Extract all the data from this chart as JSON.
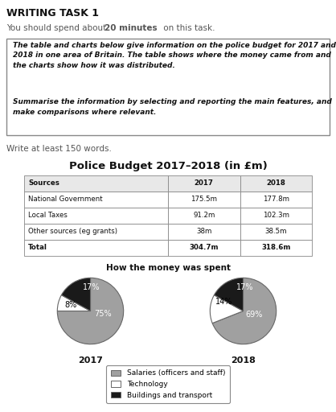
{
  "title_main": "WRITING TASK 1",
  "subtitle_prefix": "You should spend about ",
  "subtitle_bold": "20 minutes",
  "subtitle_suffix": " on this task.",
  "box_text1": "The table and charts below give information on the police budget for 2017 and\n2018 in one area of Britain. The table shows where the money came from and\nthe charts show how it was distributed.",
  "box_text2": "Summarise the information by selecting and reporting the main features, and\nmake comparisons where relevant.",
  "write_text": "Write at least 150 words.",
  "chart_title": "Police Budget 2017–2018 (in £m)",
  "table_headers": [
    "Sources",
    "2017",
    "2018"
  ],
  "table_rows": [
    [
      "National Government",
      "175.5m",
      "177.8m"
    ],
    [
      "Local Taxes",
      "91.2m",
      "102.3m"
    ],
    [
      "Other sources (eg grants)",
      "38m",
      "38.5m"
    ],
    [
      "Total",
      "304.7m",
      "318.6m"
    ]
  ],
  "pie_title": "How the money was spent",
  "pie_2017": [
    75,
    8,
    17
  ],
  "pie_2018": [
    69,
    14,
    17
  ],
  "pie_colors": [
    "#a0a0a0",
    "#ffffff",
    "#1a1a1a"
  ],
  "pie_labels_2017": [
    "75%",
    "8%",
    "17%"
  ],
  "pie_labels_2018": [
    "69%",
    "14%",
    "17%"
  ],
  "pie_year_2017": "2017",
  "pie_year_2018": "2018",
  "legend_labels": [
    "Salaries (officers and staff)",
    "Technology",
    "Buildings and transport"
  ],
  "legend_colors": [
    "#a0a0a0",
    "#ffffff",
    "#1a1a1a"
  ],
  "bg_color": "#ffffff",
  "dark_text": "#111111",
  "gray_text": "#555555",
  "box_border": "#888888",
  "table_header_bg": "#e8e8e8"
}
